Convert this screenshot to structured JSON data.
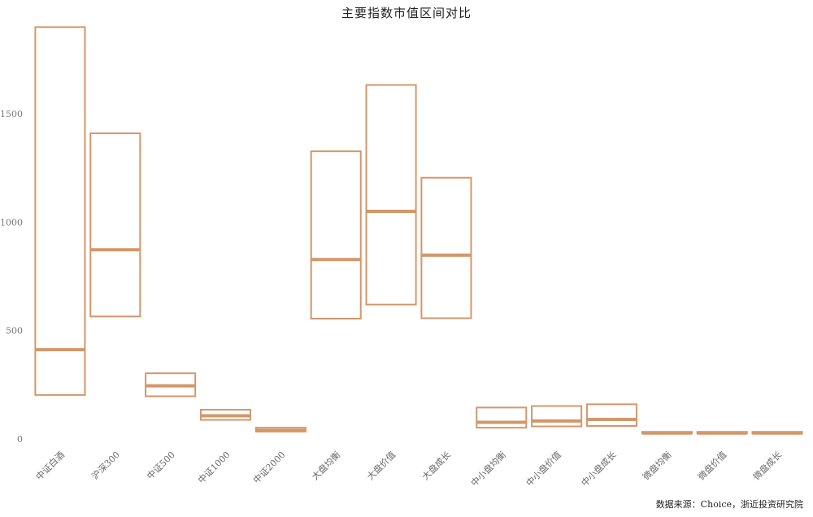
{
  "chart_data": {
    "type": "box",
    "title": "主要指数市值区间对比",
    "xlabel": "",
    "ylabel": "",
    "ylim": [
      0,
      1950
    ],
    "yticks": [
      0,
      500,
      1000,
      1500
    ],
    "grid": false,
    "legend": "none",
    "color": "#d4976a",
    "categories": [
      "中证白酒",
      "沪深300",
      "中证500",
      "中证1000",
      "中证2000",
      "大盘均衡",
      "大盘价值",
      "大盘成长",
      "中小盘均衡",
      "中小盘价值",
      "中小盘成长",
      "微盘均衡",
      "微盘价值",
      "微盘成长"
    ],
    "ranges": [
      {
        "low": 203,
        "mid": 412,
        "high": 1900
      },
      {
        "low": 565,
        "mid": 873,
        "high": 1410
      },
      {
        "low": 197,
        "mid": 245,
        "high": 303
      },
      {
        "low": 88,
        "mid": 107,
        "high": 135
      },
      {
        "low": 34,
        "mid": 40,
        "high": 52
      },
      {
        "low": 555,
        "mid": 828,
        "high": 1327
      },
      {
        "low": 620,
        "mid": 1050,
        "high": 1633
      },
      {
        "low": 557,
        "mid": 848,
        "high": 1205
      },
      {
        "low": 52,
        "mid": 77,
        "high": 145
      },
      {
        "low": 58,
        "mid": 83,
        "high": 152
      },
      {
        "low": 60,
        "mid": 90,
        "high": 160
      },
      {
        "low": 25,
        "mid": 27,
        "high": 33
      },
      {
        "low": 25,
        "mid": 27,
        "high": 33
      },
      {
        "low": 25,
        "mid": 27,
        "high": 33
      }
    ]
  },
  "source": "数据来源：Choice，浙近投资研究院"
}
